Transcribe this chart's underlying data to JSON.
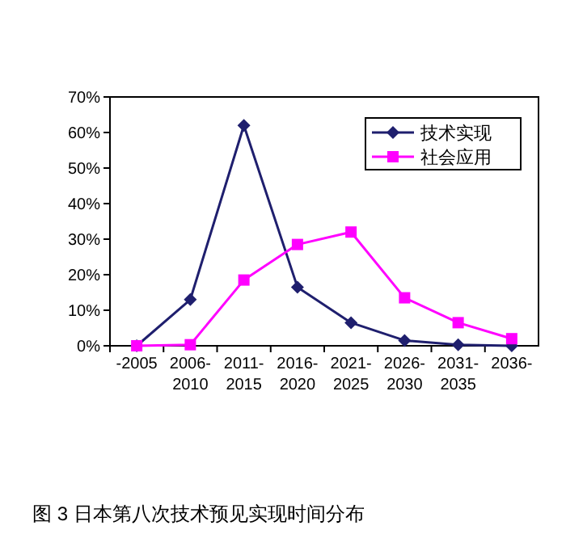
{
  "chart_data": {
    "type": "line",
    "title": "图 3 日本第八次技术预见实现时间分布",
    "categories": [
      "-2005",
      "2006-2010",
      "2011-2015",
      "2016-2020",
      "2021-2025",
      "2026-2030",
      "2031-2035",
      "2036-"
    ],
    "series": [
      {
        "name": "技术实现",
        "color": "#1f1f6e",
        "marker": "diamond",
        "values": [
          0,
          13,
          62,
          16.5,
          6.5,
          1.5,
          0.3,
          0
        ]
      },
      {
        "name": "社会应用",
        "color": "#ff00ff",
        "marker": "square",
        "values": [
          0,
          0.3,
          18.5,
          28.5,
          32,
          13.5,
          6.5,
          2
        ]
      }
    ],
    "ylim": [
      0,
      70
    ],
    "yticks": [
      {
        "value": 0,
        "label": "0%"
      },
      {
        "value": 10,
        "label": "10%"
      },
      {
        "value": 20,
        "label": "20%"
      },
      {
        "value": 30,
        "label": "30%"
      },
      {
        "value": 40,
        "label": "40%"
      },
      {
        "value": 50,
        "label": "50%"
      },
      {
        "value": 60,
        "label": "60%"
      },
      {
        "value": 70,
        "label": "70%"
      }
    ],
    "legend": "top right",
    "grid": false
  }
}
